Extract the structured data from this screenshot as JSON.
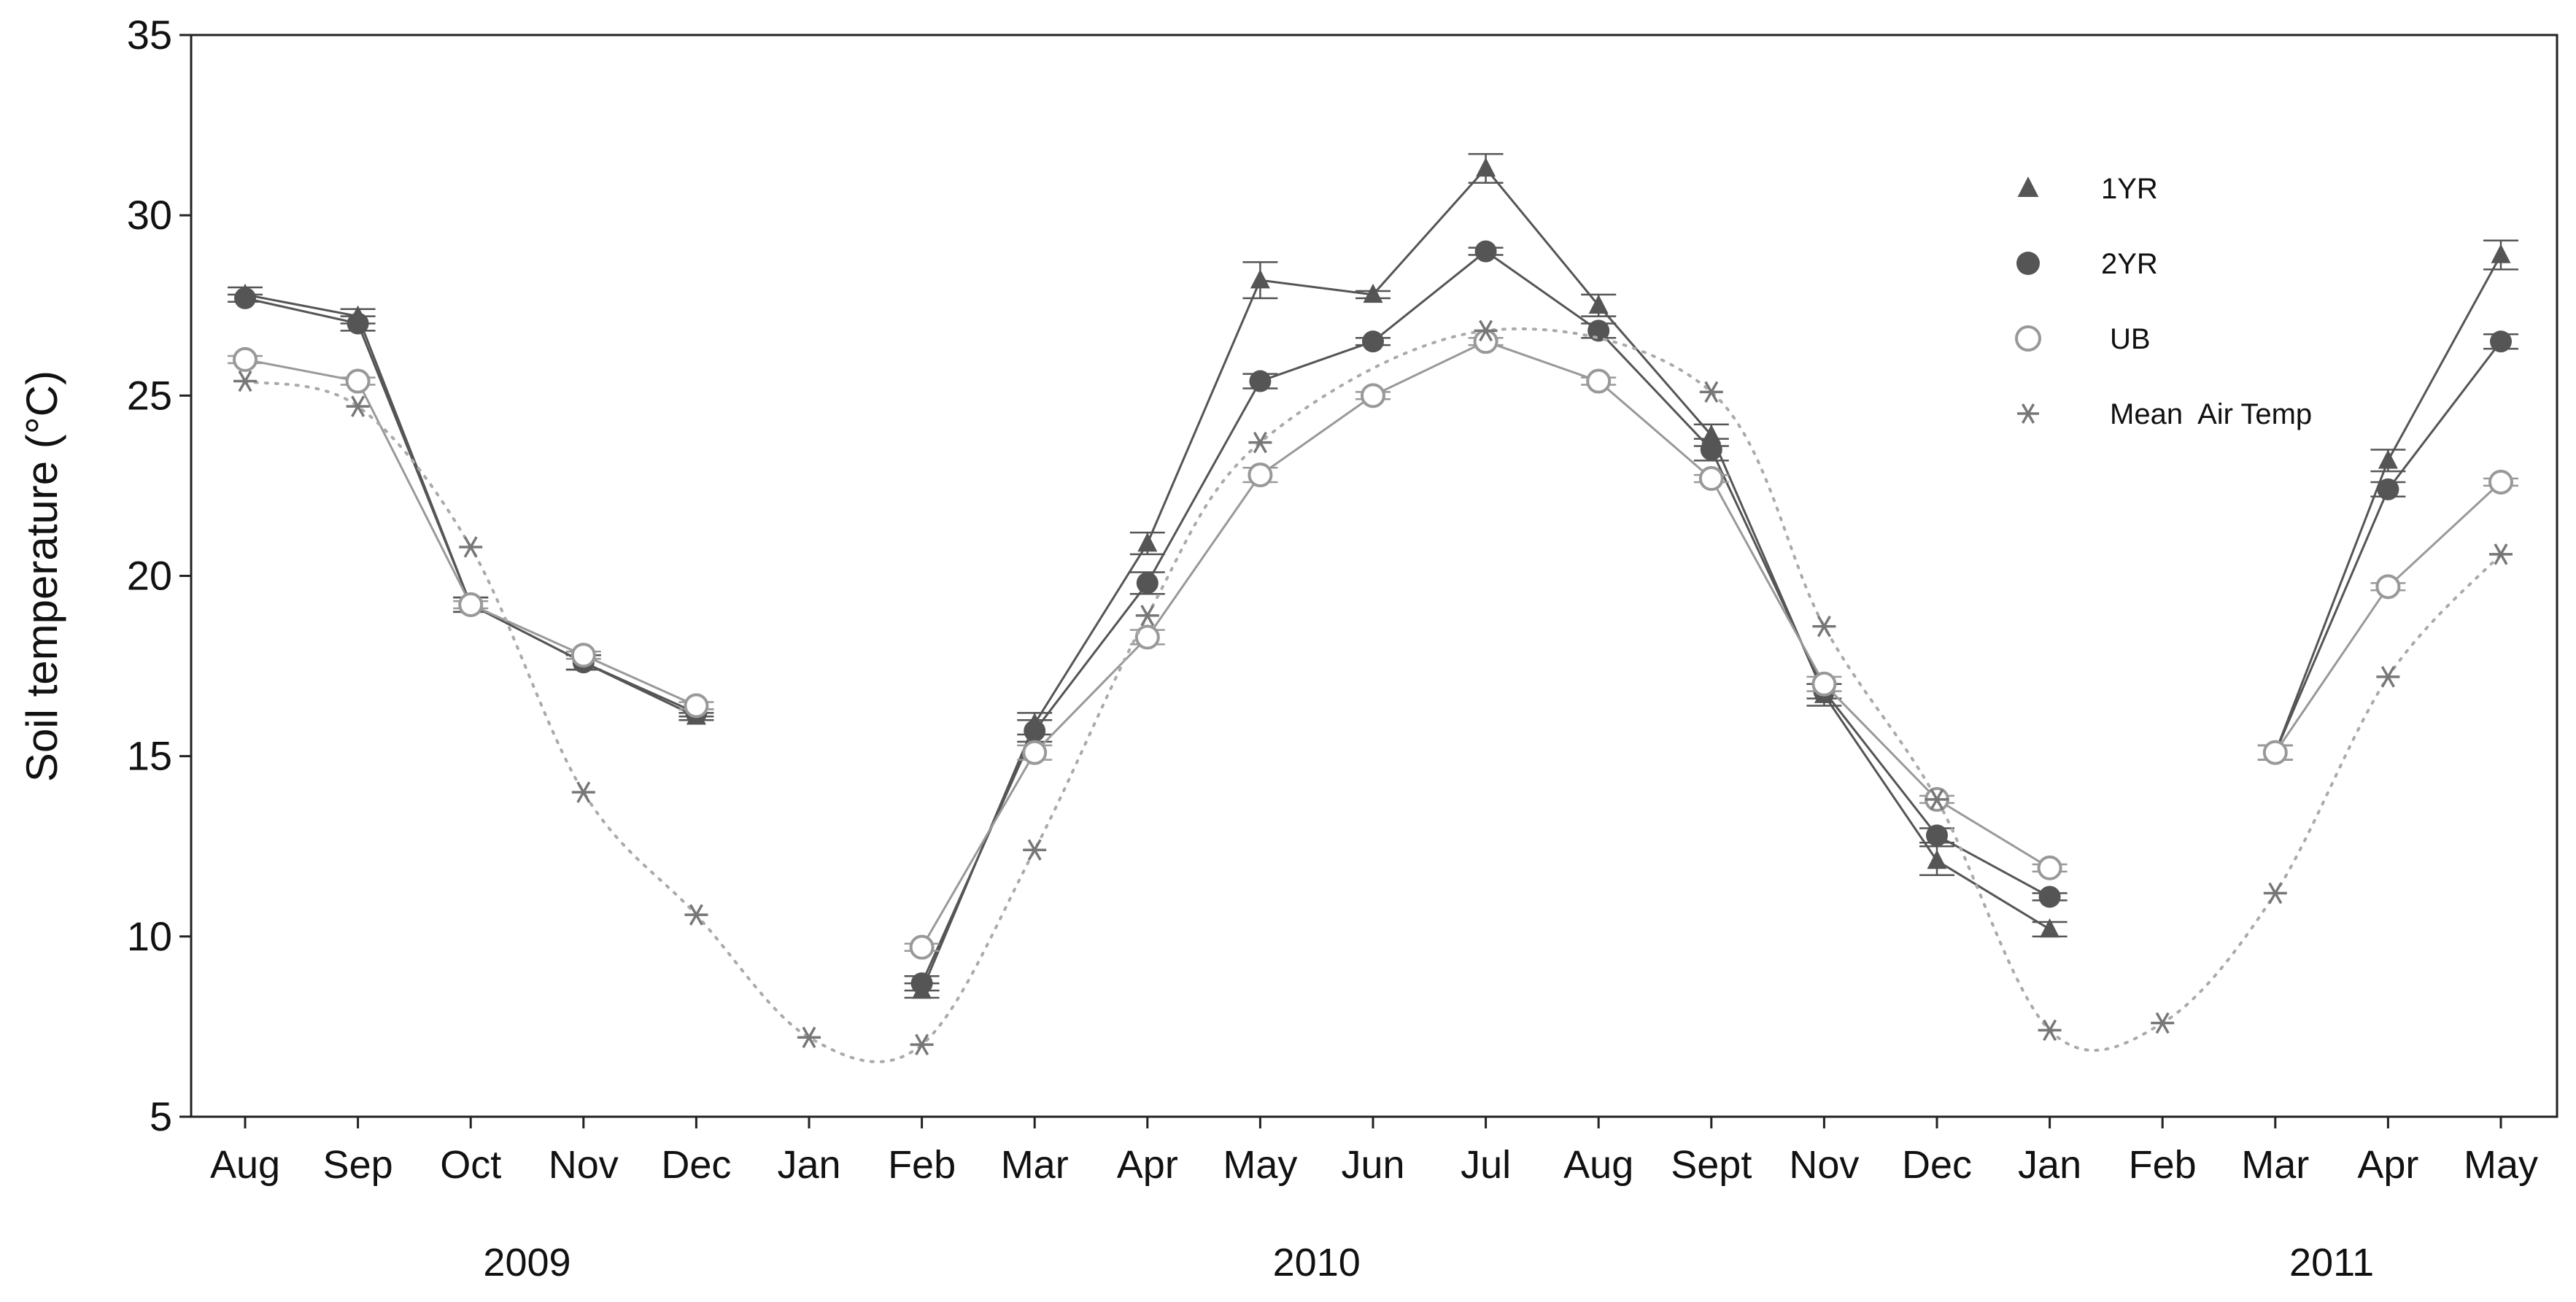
{
  "chart_data": {
    "type": "line",
    "title": "",
    "xlabel": "",
    "ylabel": "Soil temperature (°C)",
    "ylim": [
      5,
      35
    ],
    "yticks": [
      5,
      10,
      15,
      20,
      25,
      30,
      35
    ],
    "grid": false,
    "legend_position": "top-right",
    "categories": [
      "Aug",
      "Sep",
      "Oct",
      "Nov",
      "Dec",
      "Jan",
      "Feb",
      "Mar",
      "Apr",
      "May",
      "Jun",
      "Jul",
      "Aug",
      "Sept",
      "Nov",
      "Dec",
      "Jan",
      "Feb",
      "Mar",
      "Apr",
      "May"
    ],
    "years": [
      {
        "label": "2009",
        "category_index": 2.5
      },
      {
        "label": "2010",
        "category_index": 9.5
      },
      {
        "label": "2011",
        "category_index": 18.5
      }
    ],
    "series": [
      {
        "name": "1YR",
        "marker": "triangle",
        "color": "#555555",
        "values": [
          27.8,
          27.2,
          19.2,
          17.6,
          16.1,
          null,
          8.5,
          15.9,
          20.9,
          28.2,
          27.8,
          31.3,
          27.5,
          23.9,
          16.7,
          12.1,
          10.2,
          null,
          15.1,
          23.2,
          28.9
        ],
        "errors": [
          0.2,
          0.2,
          0.2,
          0.2,
          0.1,
          null,
          0.2,
          0.3,
          0.3,
          0.5,
          0.1,
          0.4,
          0.3,
          0.3,
          0.3,
          0.4,
          0.2,
          null,
          0.2,
          0.3,
          0.4
        ]
      },
      {
        "name": "2YR",
        "marker": "circle",
        "color": "#555555",
        "values": [
          27.7,
          27.0,
          19.2,
          17.6,
          16.2,
          null,
          8.7,
          15.7,
          19.8,
          25.4,
          26.5,
          29.0,
          26.8,
          23.5,
          16.8,
          12.8,
          11.1,
          null,
          15.1,
          22.4,
          26.5
        ],
        "errors": [
          0.1,
          0.2,
          0.2,
          0.2,
          0.1,
          null,
          0.2,
          0.3,
          0.3,
          0.2,
          0.1,
          0.1,
          0.2,
          0.3,
          0.2,
          0.2,
          0.1,
          null,
          0.2,
          0.2,
          0.2
        ]
      },
      {
        "name": "UB",
        "marker": "open-circle",
        "color": "#999999",
        "values": [
          26.0,
          25.4,
          19.2,
          17.8,
          16.4,
          null,
          9.7,
          15.1,
          18.3,
          22.8,
          25.0,
          26.5,
          25.4,
          22.7,
          17.0,
          13.8,
          11.9,
          null,
          15.1,
          19.7,
          22.6
        ],
        "errors": [
          0.1,
          0.1,
          0.1,
          0.1,
          0.1,
          null,
          0.1,
          0.2,
          0.2,
          0.2,
          0.1,
          0.1,
          0.1,
          0.1,
          0.2,
          0.1,
          0.1,
          null,
          0.2,
          0.1,
          0.1
        ]
      },
      {
        "name": "Mean  Air Temp",
        "marker": "asterisk",
        "color": "#777777",
        "x": [
          0,
          1,
          2,
          3,
          4,
          5,
          6,
          7,
          8,
          9,
          11,
          13,
          14,
          15,
          16,
          17,
          18,
          19,
          20
        ],
        "values": [
          25.4,
          24.7,
          20.8,
          14.0,
          10.6,
          7.2,
          7.0,
          12.4,
          18.9,
          23.7,
          26.8,
          25.1,
          18.6,
          13.8,
          7.4,
          7.6,
          11.2,
          17.2,
          20.6
        ]
      }
    ]
  }
}
